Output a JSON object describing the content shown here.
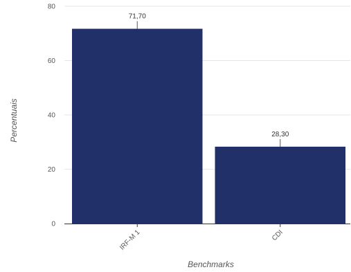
{
  "chart_data": {
    "type": "bar",
    "categories": [
      "IRF-M 1",
      "CDI"
    ],
    "values": [
      71.7,
      28.3
    ],
    "value_labels": [
      "71,70",
      "28,30"
    ],
    "xlabel": "Benchmarks",
    "ylabel": "Percentuais",
    "ylim": [
      0,
      80
    ],
    "yticks": [
      0,
      20,
      40,
      60,
      80
    ],
    "grid": true,
    "legend": "none",
    "colors": {
      "bar": "#22306a",
      "grid": "#e6e6e6",
      "axis": "#333333",
      "leader": "#555555"
    }
  }
}
